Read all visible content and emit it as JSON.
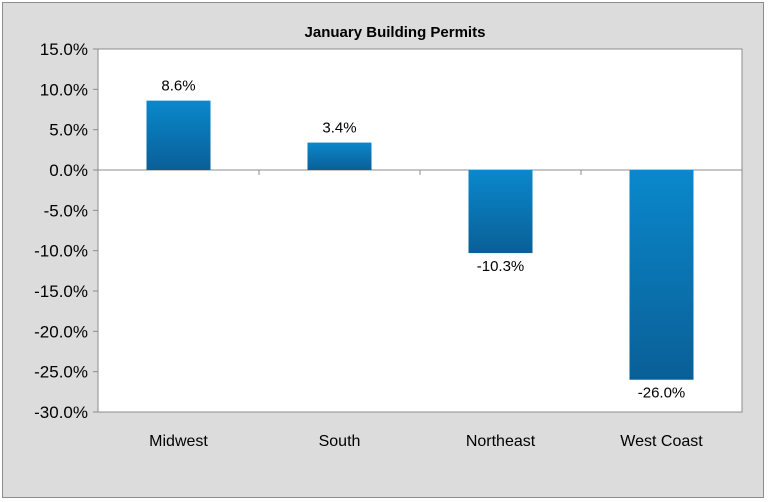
{
  "chart_data": {
    "type": "bar",
    "title": "January Building Permits",
    "xlabel": "",
    "ylabel": "",
    "categories": [
      "Midwest",
      "South",
      "Northeast",
      "West Coast"
    ],
    "values": [
      8.6,
      3.4,
      -10.3,
      -26.0
    ],
    "data_labels": [
      "8.6%",
      "3.4%",
      "-10.3%",
      "-26.0%"
    ],
    "ylim": [
      -30,
      15
    ],
    "yticks": [
      15,
      10,
      5,
      0,
      -5,
      -10,
      -15,
      -20,
      -25,
      -30
    ],
    "ytick_labels": [
      "15.0%",
      "10.0%",
      "5.0%",
      "0.0%",
      "-5.0%",
      "-10.0%",
      "-15.0%",
      "-20.0%",
      "-25.0%",
      "-30.0%"
    ],
    "grid": false,
    "legend": "none",
    "colors": {
      "bar_top": "#0a88cc",
      "bar_bottom": "#0a5f96",
      "plot_background": "#ffffff",
      "chart_background": "#dcdcdc"
    }
  }
}
